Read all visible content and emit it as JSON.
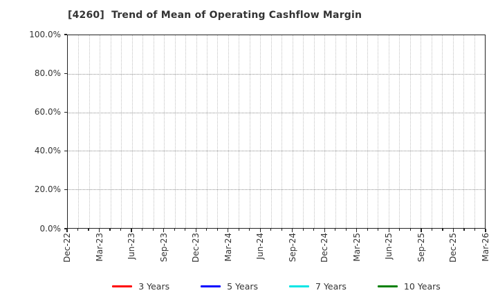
{
  "chart_data": {
    "type": "line",
    "title": "[4260]  Trend of Mean of Operating Cashflow Margin",
    "xlabel": "",
    "ylabel": "",
    "x_tick_labels": [
      "Dec-22",
      "Mar-23",
      "Jun-23",
      "Sep-23",
      "Dec-23",
      "Mar-24",
      "Jun-24",
      "Sep-24",
      "Dec-24",
      "Mar-25",
      "Jun-25",
      "Sep-25",
      "Dec-25",
      "Mar-26"
    ],
    "label_step_months": 3,
    "months_total": 39,
    "y_ticks": [
      "0.0%",
      "20.0%",
      "40.0%",
      "60.0%",
      "80.0%",
      "100.0%"
    ],
    "y_grid_percent": [
      20,
      40,
      60,
      80
    ],
    "ylim": [
      0,
      100
    ],
    "grid": "on",
    "legend_position": "bottom",
    "series": [
      {
        "name": "3 Years",
        "color": "#ff0000",
        "x": [],
        "values": []
      },
      {
        "name": "5 Years",
        "color": "#0000ff",
        "x": [],
        "values": []
      },
      {
        "name": "7 Years",
        "color": "#00e5e5",
        "x": [],
        "values": []
      },
      {
        "name": "10 Years",
        "color": "#008000",
        "x": [],
        "values": []
      }
    ]
  }
}
